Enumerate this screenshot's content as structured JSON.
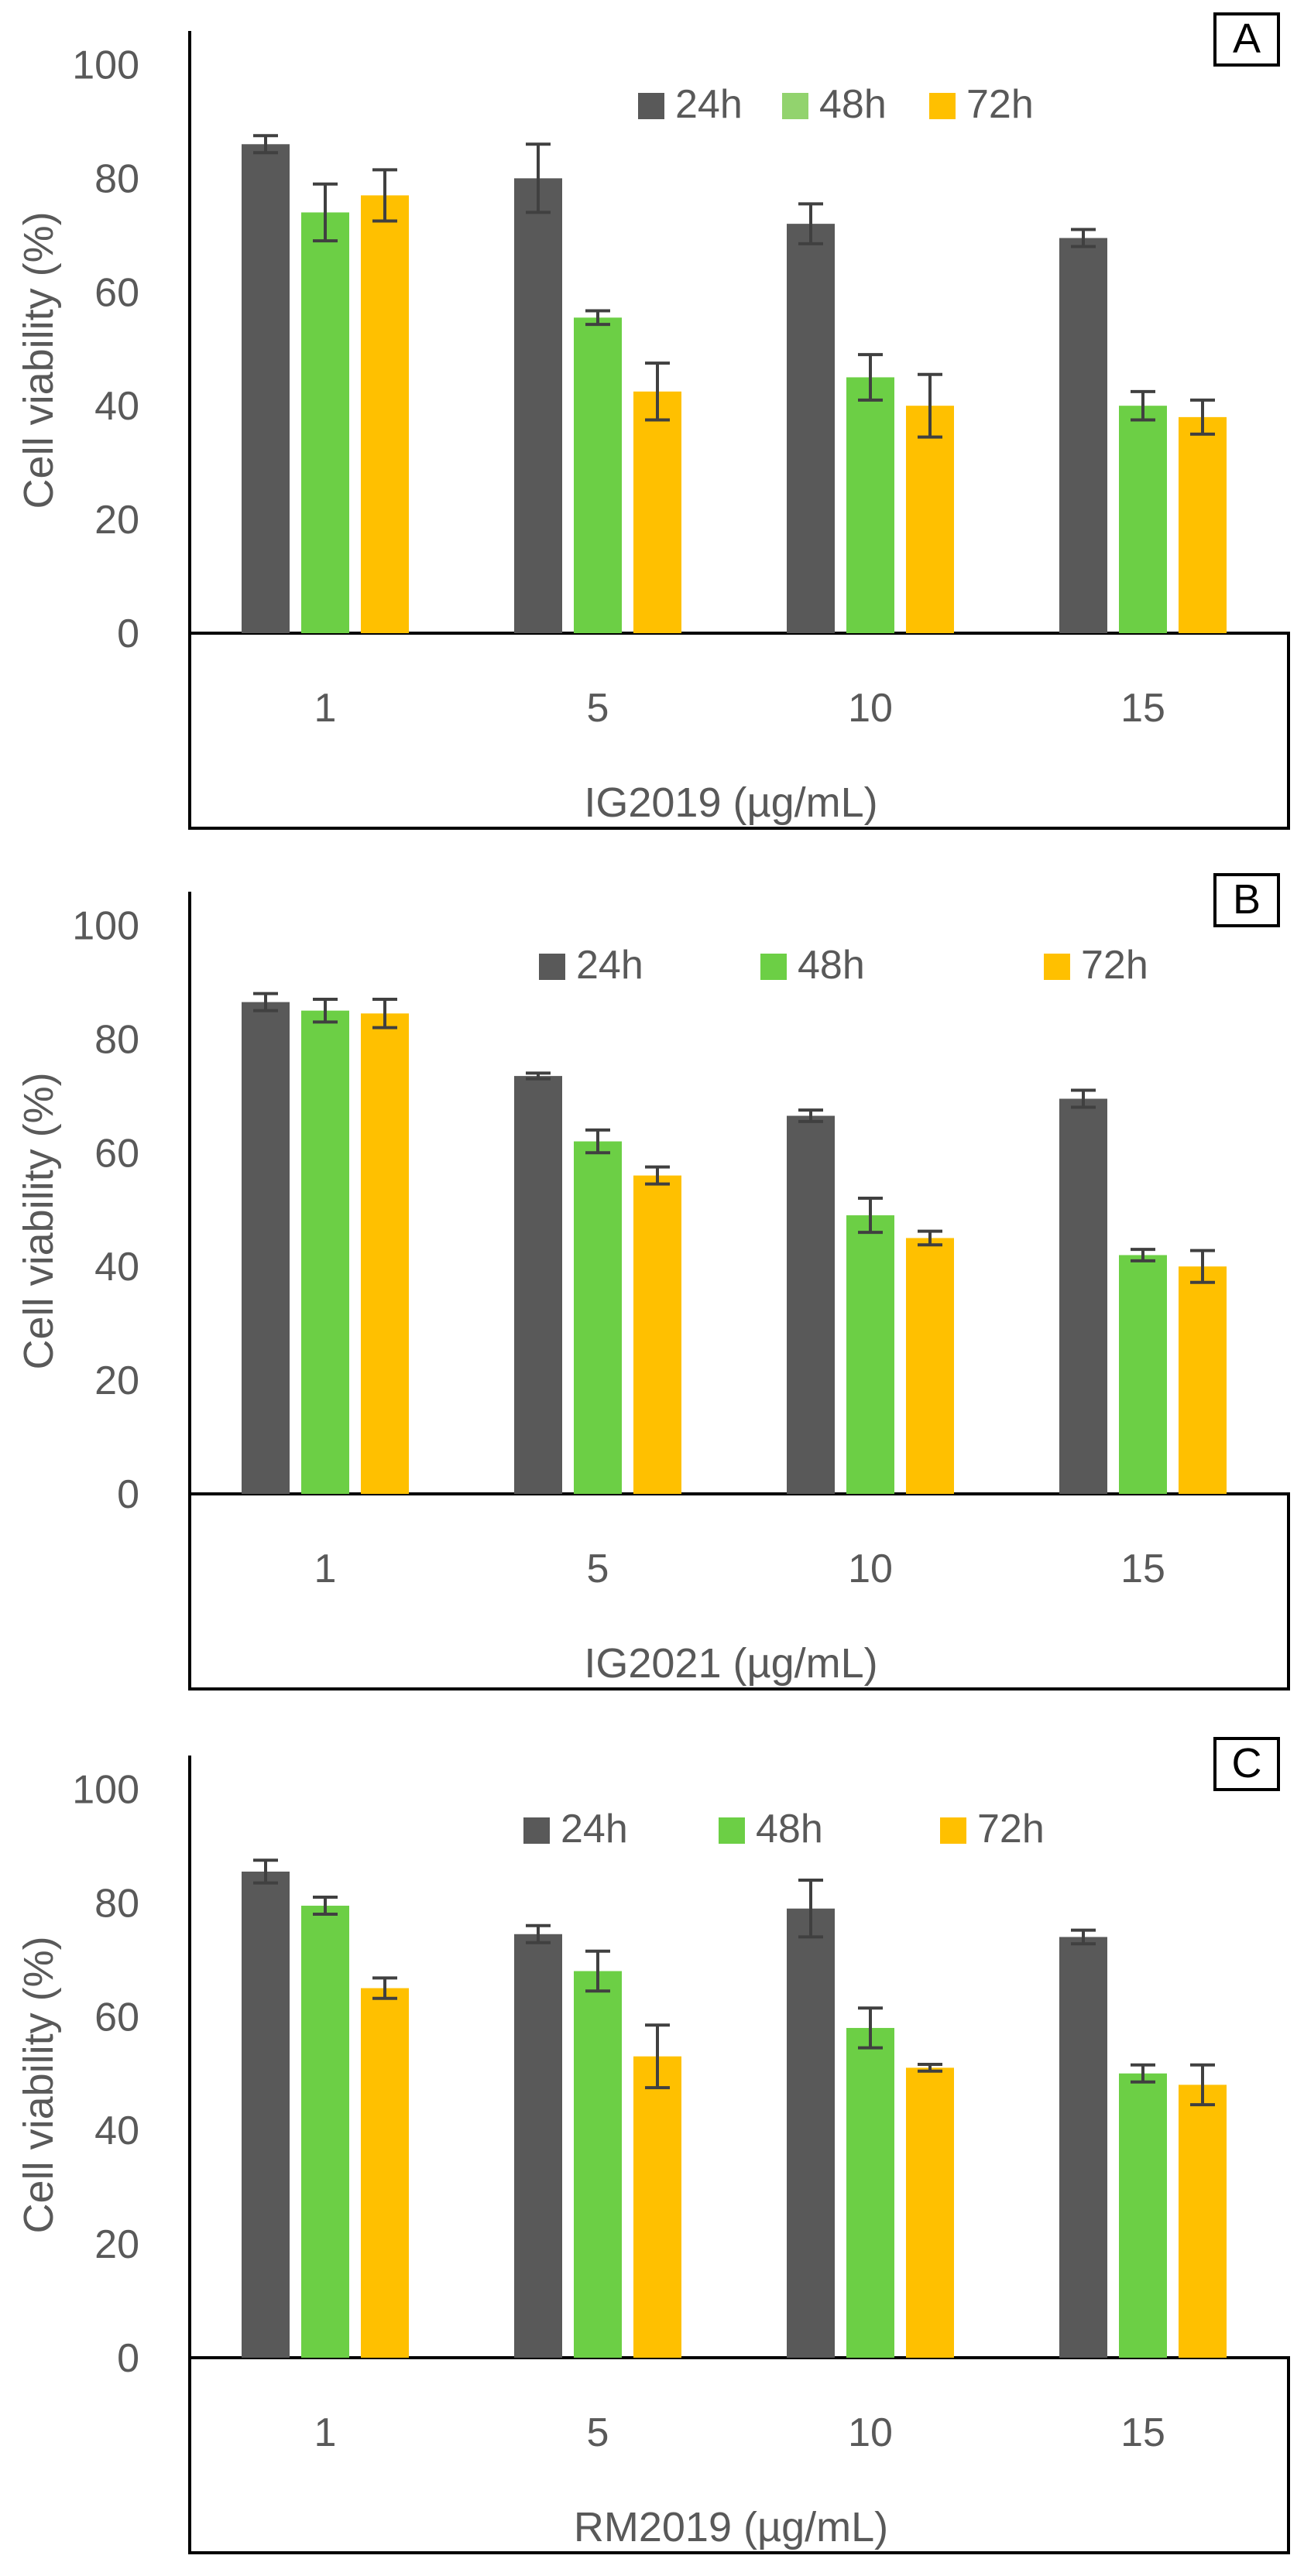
{
  "figure": {
    "colors": {
      "24h": "#595959",
      "48h_A": "#92d36e",
      "48h": "#6ccf45",
      "72h": "#ffc000",
      "axis_text": "#595959",
      "error_bar": "#404040"
    }
  },
  "chart_data": [
    {
      "panel": "A",
      "type": "bar",
      "ylabel": "Cell viability (%)",
      "xlabel": "IG2019 (µg/mL)",
      "ylim": [
        0,
        100
      ],
      "yticks": [
        "0",
        "20",
        "40",
        "60",
        "80",
        "100"
      ],
      "categories": [
        "1",
        "5",
        "10",
        "15"
      ],
      "legend": [
        "24h",
        "48h",
        "72h"
      ],
      "series": [
        {
          "name": "24h",
          "values": [
            86,
            80,
            72,
            69.5
          ],
          "errors": [
            1.5,
            6,
            3.5,
            1.5
          ]
        },
        {
          "name": "48h",
          "values": [
            74,
            55.5,
            45,
            40
          ],
          "errors": [
            5,
            1.2,
            4,
            2.5
          ]
        },
        {
          "name": "72h",
          "values": [
            77,
            42.5,
            40,
            38
          ],
          "errors": [
            4.5,
            5,
            5.5,
            3
          ]
        }
      ]
    },
    {
      "panel": "B",
      "type": "bar",
      "ylabel": "Cell viability (%)",
      "xlabel": "IG2021  (µg/mL)",
      "ylim": [
        0,
        100
      ],
      "yticks": [
        "0",
        "20",
        "40",
        "60",
        "80",
        "100"
      ],
      "categories": [
        "1",
        "5",
        "10",
        "15"
      ],
      "legend": [
        "24h",
        "48h",
        "72h"
      ],
      "series": [
        {
          "name": "24h",
          "values": [
            86.5,
            73.5,
            66.5,
            69.5
          ],
          "errors": [
            1.5,
            0.5,
            1,
            1.5
          ]
        },
        {
          "name": "48h",
          "values": [
            85,
            62,
            49,
            42
          ],
          "errors": [
            2,
            2,
            3,
            1
          ]
        },
        {
          "name": "72h",
          "values": [
            84.5,
            56,
            45,
            40
          ],
          "errors": [
            2.5,
            1.5,
            1.2,
            2.8
          ]
        }
      ]
    },
    {
      "panel": "C",
      "type": "bar",
      "ylabel": "Cell viability (%)",
      "xlabel": "RM2019  (µg/mL)",
      "ylim": [
        0,
        100
      ],
      "yticks": [
        "0",
        "20",
        "40",
        "60",
        "80",
        "100"
      ],
      "categories": [
        "1",
        "5",
        "10",
        "15"
      ],
      "legend": [
        "24h",
        "48h",
        "72h"
      ],
      "series": [
        {
          "name": "24h",
          "values": [
            85.5,
            74.5,
            79,
            74
          ],
          "errors": [
            2,
            1.5,
            5,
            1.2
          ]
        },
        {
          "name": "48h",
          "values": [
            79.5,
            68,
            58,
            50
          ],
          "errors": [
            1.5,
            3.5,
            3.5,
            1.5
          ]
        },
        {
          "name": "72h",
          "values": [
            65,
            53,
            51,
            48
          ],
          "errors": [
            1.8,
            5.5,
            0.6,
            3.5
          ]
        }
      ]
    }
  ]
}
